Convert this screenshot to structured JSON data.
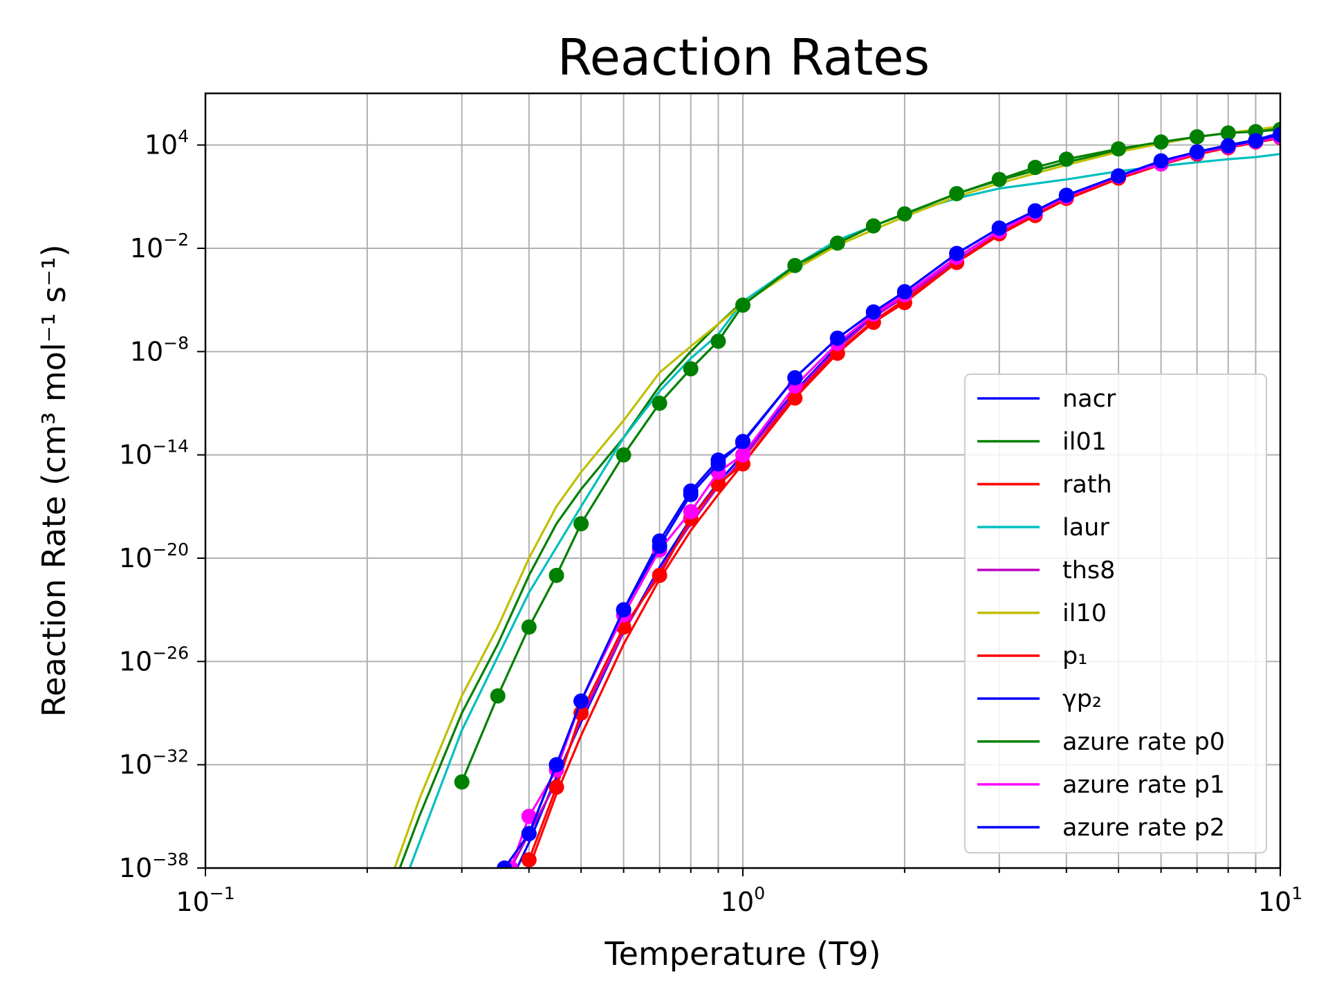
{
  "chart_data": {
    "type": "line",
    "title": "Reaction Rates",
    "xlabel": "Temperature (T9)",
    "ylabel": "Reaction Rate (cm³ mol⁻¹ s⁻¹)",
    "x_scale": "log",
    "y_scale": "log",
    "xlim": [
      0.1,
      10
    ],
    "ylim": [
      1e-38,
      10000000.0
    ],
    "grid": true,
    "legend_position": "lower right",
    "x_ticks": [
      {
        "base": "10",
        "exp": "−1",
        "value": 0.1
      },
      {
        "base": "10",
        "exp": "0",
        "value": 1
      },
      {
        "base": "10",
        "exp": "1",
        "value": 10
      }
    ],
    "y_ticks": [
      {
        "base": "10",
        "exp": "4",
        "value": 10000.0
      },
      {
        "base": "10",
        "exp": "−2",
        "value": 0.01
      },
      {
        "base": "10",
        "exp": "−8",
        "value": 1e-08
      },
      {
        "base": "10",
        "exp": "−14",
        "value": 1e-14
      },
      {
        "base": "10",
        "exp": "−20",
        "value": 1e-20
      },
      {
        "base": "10",
        "exp": "−26",
        "value": 1e-26
      },
      {
        "base": "10",
        "exp": "−32",
        "value": 1e-32
      },
      {
        "base": "10",
        "exp": "−38",
        "value": 1e-38
      }
    ],
    "series": [
      {
        "name": "nacr",
        "color": "#0000ff",
        "marker": false,
        "x": [
          0.38,
          0.4,
          0.45,
          0.5,
          0.6,
          0.7,
          0.8,
          0.9,
          1.0,
          1.25,
          1.5,
          1.75,
          2.0,
          2.5,
          3.0,
          3.5,
          4.0,
          5.0,
          6.0,
          7.0,
          8.0,
          9.0,
          10.0
        ],
        "y": [
          1e-38,
          3e-37,
          2e-33,
          3e-30,
          5e-25,
          3e-21,
          2e-18,
          2.5e-16,
          1e-14,
          5e-11,
          2e-08,
          1.3e-06,
          2e-05,
          0.003,
          0.1,
          1.2,
          10,
          160,
          1000,
          4000,
          10000,
          20000,
          50000
        ]
      },
      {
        "name": "il01",
        "color": "#008000",
        "marker": false,
        "x": [
          0.23,
          0.25,
          0.3,
          0.35,
          0.4,
          0.45,
          0.5,
          0.6,
          0.7,
          0.8,
          0.9,
          1.0,
          1.25,
          1.5,
          1.75,
          2.0,
          2.5,
          3.0,
          3.5,
          4.0,
          5.0,
          6.0,
          7.0,
          8.0,
          9.0,
          10.0
        ],
        "y": [
          1e-38,
          1e-35,
          1e-29,
          1e-25,
          1e-21,
          1e-18,
          1e-16,
          1e-13,
          1e-10,
          1e-08,
          4e-07,
          8e-06,
          0.0006,
          0.02,
          0.2,
          1.0,
          15,
          90,
          330,
          1000,
          5000,
          15000,
          30000,
          50000,
          70000,
          100000
        ]
      },
      {
        "name": "rath",
        "color": "#ff0000",
        "marker": false,
        "x": [
          0.4,
          0.45,
          0.5,
          0.6,
          0.7,
          0.8,
          0.9,
          1.0,
          1.25,
          1.5,
          1.75,
          2.0,
          2.5,
          3.0,
          3.5,
          4.0,
          5.0,
          6.0,
          7.0,
          8.0,
          9.0,
          10.0
        ],
        "y": [
          1e-38,
          2e-34,
          5e-31,
          1e-25,
          6e-22,
          4e-19,
          5e-17,
          3e-15,
          3e-11,
          1e-08,
          6e-07,
          1e-05,
          0.0015,
          0.06,
          0.8,
          7,
          110,
          700,
          2800,
          7000,
          14000,
          25000
        ]
      },
      {
        "name": "laur",
        "color": "#00bfbf",
        "marker": false,
        "x": [
          0.24,
          0.3,
          0.4,
          0.5,
          0.6,
          0.7,
          0.8,
          0.9,
          1.0,
          1.25,
          1.5,
          2.0,
          2.5,
          3.0,
          4.0,
          5.0,
          6.0,
          7.0,
          8.0,
          9.0,
          10.0
        ],
        "y": [
          1e-38,
          1e-30,
          1e-22,
          1e-17,
          1e-13,
          5e-11,
          4e-09,
          1e-07,
          8e-06,
          0.001,
          0.03,
          1.0,
          8,
          30,
          100,
          300,
          600,
          1000,
          1500,
          2000,
          3000
        ]
      },
      {
        "name": "ths8",
        "color": "#bf00bf",
        "marker": false,
        "x": [
          0.37,
          0.4,
          0.45,
          0.5,
          0.6,
          0.7,
          0.8,
          0.9,
          1.0,
          1.25,
          1.5,
          1.75,
          2.0,
          2.5,
          3.0,
          4.0,
          5.0,
          6.0,
          7.0,
          8.0,
          9.0,
          10.0
        ],
        "y": [
          1e-38,
          1e-36,
          1e-33,
          5e-30,
          5e-25,
          2e-21,
          1e-18,
          1.5e-16,
          6e-15,
          4e-11,
          1.5e-08,
          1e-06,
          1.5e-05,
          0.002,
          0.07,
          8,
          120,
          800,
          3000,
          8000,
          15000,
          27000
        ]
      },
      {
        "name": "il10",
        "color": "#bfbf00",
        "marker": false,
        "x": [
          0.225,
          0.25,
          0.3,
          0.35,
          0.4,
          0.45,
          0.5,
          0.6,
          0.7,
          0.8,
          0.9,
          1.0,
          1.25,
          1.5,
          2.0,
          2.5,
          3.0,
          4.0,
          5.0,
          6.0,
          7.0,
          8.0,
          9.0,
          10.0
        ],
        "y": [
          1e-38,
          1e-34,
          1e-28,
          1e-24,
          1e-20,
          1e-17,
          1e-15,
          1e-12,
          6e-10,
          2e-08,
          4e-07,
          6e-06,
          0.0006,
          0.015,
          0.7,
          10,
          60,
          700,
          4000,
          12000,
          30000,
          50000,
          80000,
          120000
        ]
      },
      {
        "name": "p₁",
        "color": "#ff0000",
        "marker": true,
        "x": [
          0.4,
          0.45,
          0.5,
          0.6,
          0.7,
          0.8,
          0.9,
          1.0,
          1.25,
          1.5,
          1.75,
          2.0,
          2.5,
          3.0,
          3.5,
          4.0,
          5.0,
          6.0,
          7.0,
          8.0,
          9.0,
          10.0
        ],
        "y": [
          3e-38,
          5e-34,
          1e-29,
          1e-24,
          1e-21,
          2e-18,
          2e-16,
          3e-15,
          2e-11,
          8e-09,
          5e-07,
          7e-06,
          0.0015,
          0.07,
          0.8,
          8,
          120,
          800,
          3000,
          7000,
          15000,
          27000
        ]
      },
      {
        "name": "γp₂",
        "color": "#0000ff",
        "marker": true,
        "x": [
          0.4,
          0.45,
          0.5,
          0.6,
          0.7,
          0.8,
          0.9,
          1.0,
          1.25,
          1.5,
          1.75,
          2.0,
          2.5,
          3.0,
          3.5,
          4.0,
          5.0,
          6.0,
          7.0,
          8.0,
          9.0,
          10.0
        ],
        "y": [
          1e-36,
          1e-32,
          5e-29,
          1e-23,
          1e-19,
          8e-17,
          5e-15,
          5e-14,
          3e-10,
          6e-08,
          2e-06,
          3e-05,
          0.005,
          0.15,
          1.5,
          12,
          160,
          1000,
          3500,
          8000,
          16000,
          30000
        ]
      },
      {
        "name": "azure rate p0",
        "color": "#008000",
        "marker": true,
        "x": [
          0.3,
          0.35,
          0.4,
          0.45,
          0.5,
          0.6,
          0.7,
          0.8,
          0.9,
          1.0,
          1.25,
          1.5,
          1.75,
          2.0,
          2.5,
          3.0,
          3.5,
          4.0,
          5.0,
          6.0,
          7.0,
          8.0,
          9.0,
          10.0
        ],
        "y": [
          1e-33,
          1e-28,
          1e-24,
          1e-21,
          1e-18,
          1e-14,
          1e-11,
          1e-09,
          4e-08,
          5e-06,
          0.001,
          0.02,
          0.2,
          1.0,
          15,
          100,
          500,
          1500,
          6000,
          15000,
          30000,
          50000,
          60000,
          80000
        ]
      },
      {
        "name": "azure rate p1",
        "color": "#ff00ff",
        "marker": true,
        "x": [
          0.37,
          0.4,
          0.45,
          0.5,
          0.6,
          0.7,
          0.8,
          0.9,
          1.0,
          1.25,
          1.5,
          1.75,
          2.0,
          2.5,
          3.0,
          3.5,
          4.0,
          5.0,
          6.0,
          7.0,
          8.0,
          9.0,
          10.0
        ],
        "y": [
          1e-38,
          1e-35,
          5e-33,
          5e-29,
          5e-24,
          3e-20,
          5e-18,
          1e-15,
          1e-14,
          1e-10,
          3e-08,
          1.5e-06,
          2e-05,
          0.003,
          0.1,
          1.2,
          10,
          150,
          800,
          3500,
          8000,
          16000,
          30000
        ]
      },
      {
        "name": "azure rate p2",
        "color": "#0000ff",
        "marker": true,
        "x": [
          0.36,
          0.4,
          0.45,
          0.5,
          0.6,
          0.7,
          0.8,
          0.9,
          1.0,
          1.25,
          1.5,
          1.75,
          2.0,
          2.5,
          3.0,
          3.5,
          4.0,
          5.0,
          6.0,
          7.0,
          8.0,
          9.0,
          10.0
        ],
        "y": [
          1e-38,
          1e-36,
          1e-32,
          5e-29,
          1e-23,
          5e-20,
          5e-17,
          3e-15,
          6e-14,
          3e-10,
          6e-08,
          2e-06,
          3e-05,
          0.005,
          0.15,
          1.5,
          12,
          160,
          1200,
          4000,
          9000,
          18000,
          40000
        ]
      }
    ]
  }
}
